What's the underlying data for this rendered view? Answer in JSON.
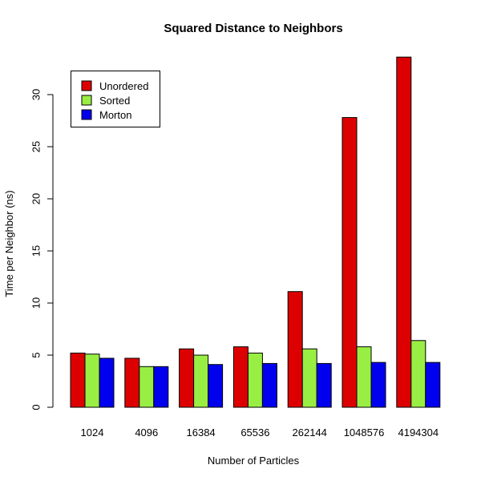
{
  "chart_data": {
    "type": "bar",
    "title": "Squared Distance to Neighbors",
    "xlabel": "Number of Particles",
    "ylabel": "Time per Neighbor (ns)",
    "categories": [
      "1024",
      "4096",
      "16384",
      "65536",
      "262144",
      "1048576",
      "4194304"
    ],
    "series": [
      {
        "name": "Unordered",
        "color": "#dd0000",
        "values": [
          5.2,
          4.7,
          5.6,
          5.8,
          11.1,
          27.8,
          33.6
        ]
      },
      {
        "name": "Sorted",
        "color": "#99ee44",
        "values": [
          5.1,
          3.9,
          5.0,
          5.2,
          5.6,
          5.8,
          6.4
        ]
      },
      {
        "name": "Morton",
        "color": "#0000ee",
        "values": [
          4.7,
          3.9,
          4.1,
          4.2,
          4.2,
          4.3,
          4.3
        ]
      }
    ],
    "ylim": [
      0,
      34
    ],
    "yticks": [
      0,
      5,
      10,
      15,
      20,
      25,
      30
    ],
    "grid": false,
    "legend": "top-left"
  }
}
